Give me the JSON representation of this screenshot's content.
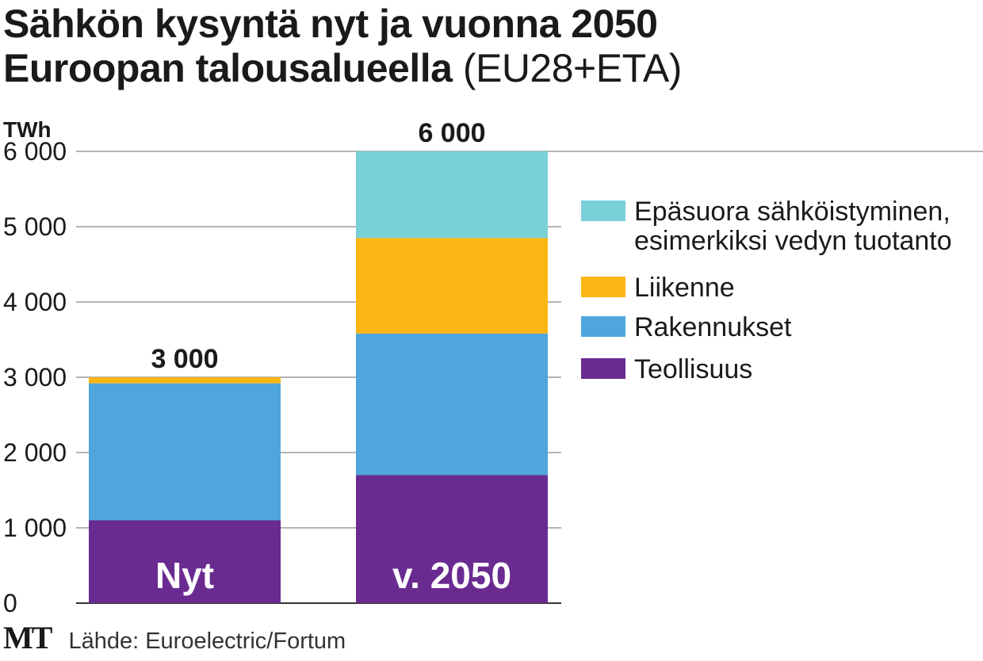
{
  "title": {
    "line1": "Sähkön kysyntä nyt ja vuonna 2050",
    "line2_bold": "Euroopan talousalueella",
    "line2_light": "(EU28+ETA)"
  },
  "footer": {
    "logo": "MT",
    "source": "Lähde: Euroelectric/Fortum"
  },
  "chart_data": {
    "type": "bar",
    "stacked": true,
    "ylabel": "TWh",
    "ylim": [
      0,
      6000
    ],
    "yticks": [
      0,
      1000,
      2000,
      3000,
      4000,
      5000,
      6000
    ],
    "ytick_labels": [
      "0",
      "1 000",
      "2 000",
      "3 000",
      "4 000",
      "5 000",
      "6 000"
    ],
    "grid": true,
    "legend_position": "right",
    "categories": [
      "Nyt",
      "v. 2050"
    ],
    "totals": [
      "3 000",
      "6 000"
    ],
    "series": [
      {
        "name": "Teollisuus",
        "color": "#6a2b91",
        "values": [
          1100,
          1700
        ]
      },
      {
        "name": "Rakennukset",
        "color": "#4fa6dc",
        "values": [
          1820,
          1880
        ]
      },
      {
        "name": "Liikenne",
        "color": "#fbb614",
        "values": [
          80,
          1270
        ]
      },
      {
        "name": "Epäsuora sähköistyminen,\nesimerkiksi vedyn tuotanto",
        "color": "#79d0d7",
        "values": [
          0,
          1150
        ]
      }
    ]
  }
}
